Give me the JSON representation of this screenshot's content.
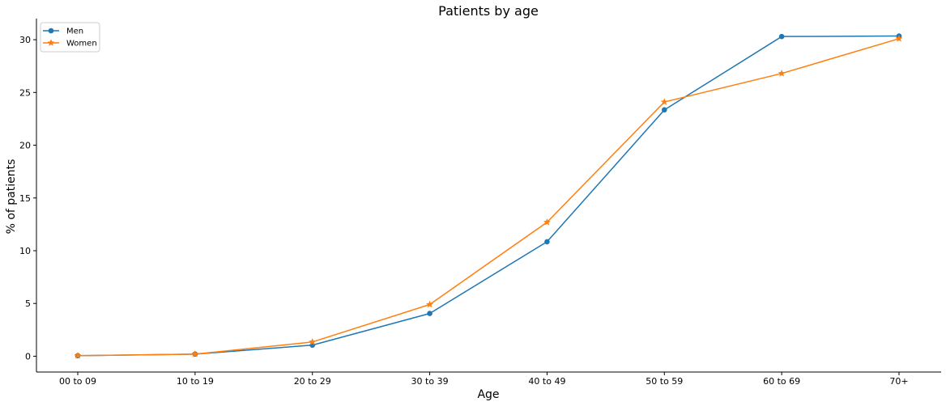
{
  "chart_data": {
    "type": "line",
    "title": "Patients by age",
    "xlabel": "Age",
    "ylabel": "% of patients",
    "categories": [
      "00 to 09",
      "10 to 19",
      "20 to 29",
      "30 to 39",
      "40 to 49",
      "50 to 59",
      "60 to 69",
      "70+"
    ],
    "ylim": [
      -1.5,
      32
    ],
    "yticks": [
      0,
      5,
      10,
      15,
      20,
      25,
      30
    ],
    "grid": false,
    "legend_position": "upper-left",
    "series": [
      {
        "name": "Men",
        "marker": "circle",
        "color": "#1f77b4",
        "values": [
          0.05,
          0.2,
          1.05,
          4.05,
          10.85,
          23.35,
          30.3,
          30.35
        ]
      },
      {
        "name": "Women",
        "marker": "star",
        "color": "#ff7f0e",
        "values": [
          0.05,
          0.2,
          1.35,
          4.9,
          12.7,
          24.1,
          26.8,
          30.1
        ]
      }
    ]
  }
}
